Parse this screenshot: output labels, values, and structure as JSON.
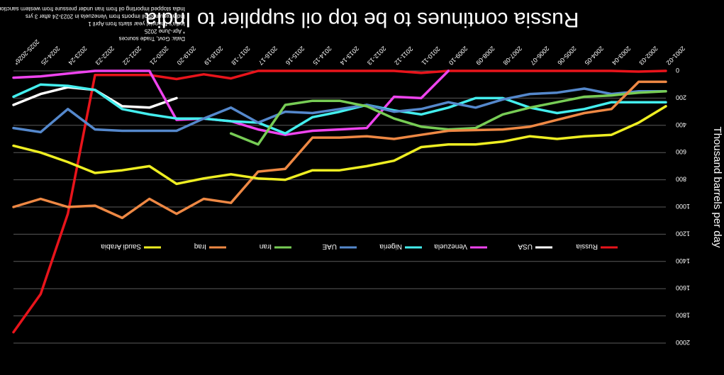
{
  "chart_data": {
    "type": "line",
    "title": "Russia continues to be top oil supplier to India",
    "ylabel": "Thousand barrels per day",
    "ylim": [
      0,
      2000
    ],
    "y_ticks": [
      "0",
      "200",
      "400",
      "600",
      "800",
      "1000",
      "1200",
      "1400",
      "1600",
      "1800",
      "2000"
    ],
    "categories": [
      "2001-02",
      "2002-03",
      "2003-04",
      "2004-05",
      "2005-06",
      "2006-07",
      "2007-08",
      "2008-09",
      "2009-10",
      "2010-11",
      "2011-12",
      "2012-13",
      "2013-14",
      "2014-15",
      "2015-16",
      "2016-17",
      "2017-18",
      "2018-19",
      "2019-20",
      "2020-21",
      "2021-22",
      "2022-23",
      "2023-24",
      "2024-25",
      "2025-2026*"
    ],
    "notes": [
      "Data: Govt, Trade sources",
      "* Apr-June 2025",
      "India's financial year starts from April 1",
      "India resumed oil imports from Venezuela in 2023-24 after 3 yrs",
      "India stopped importing oil from Iran under pressure from western sanctions"
    ],
    "legend_position": "bottom",
    "series": [
      {
        "name": "Russia",
        "color": "#e8141b",
        "values": [
          0,
          5,
          0,
          0,
          0,
          0,
          0,
          0,
          0,
          15,
          0,
          0,
          0,
          0,
          0,
          0,
          55,
          25,
          60,
          30,
          30,
          30,
          1050,
          1640,
          1920
        ]
      },
      {
        "name": "USA",
        "color": "#ffffff",
        "values": [
          null,
          null,
          null,
          null,
          null,
          null,
          null,
          null,
          null,
          null,
          null,
          null,
          null,
          null,
          null,
          null,
          null,
          null,
          200,
          270,
          260,
          140,
          120,
          170,
          250
        ]
      },
      {
        "name": "Venezuela",
        "color": "#ee44ee",
        "values": [
          null,
          null,
          null,
          null,
          null,
          null,
          null,
          null,
          0,
          200,
          190,
          420,
          430,
          440,
          470,
          430,
          370,
          350,
          360,
          0,
          0,
          0,
          20,
          40,
          50
        ]
      },
      {
        "name": "Nigeria",
        "color": "#44eeee",
        "values": [
          230,
          230,
          230,
          280,
          310,
          270,
          200,
          200,
          270,
          320,
          290,
          250,
          300,
          340,
          460,
          380,
          370,
          350,
          350,
          320,
          280,
          140,
          110,
          100,
          190
        ]
      },
      {
        "name": "UAE",
        "color": "#5588cc",
        "values": [
          150,
          150,
          170,
          130,
          160,
          170,
          210,
          270,
          230,
          280,
          300,
          250,
          280,
          310,
          300,
          380,
          270,
          350,
          440,
          440,
          440,
          430,
          280,
          450,
          420
        ]
      },
      {
        "name": "Iran",
        "color": "#77cc55",
        "values": [
          150,
          160,
          180,
          190,
          230,
          270,
          320,
          420,
          430,
          410,
          350,
          260,
          220,
          220,
          250,
          540,
          460,
          null,
          null,
          null,
          null,
          null,
          null,
          null,
          null
        ]
      },
      {
        "name": "Iraq",
        "color": "#ee8844",
        "values": [
          80,
          80,
          280,
          310,
          360,
          410,
          430,
          435,
          440,
          470,
          500,
          480,
          490,
          490,
          720,
          740,
          970,
          940,
          1050,
          940,
          1080,
          990,
          1000,
          940,
          1000
        ]
      },
      {
        "name": "Saudi Arabia",
        "color": "#eeee22",
        "values": [
          260,
          380,
          470,
          480,
          500,
          480,
          520,
          540,
          540,
          560,
          660,
          700,
          730,
          730,
          800,
          790,
          760,
          790,
          830,
          700,
          730,
          750,
          670,
          600,
          550
        ]
      }
    ]
  }
}
